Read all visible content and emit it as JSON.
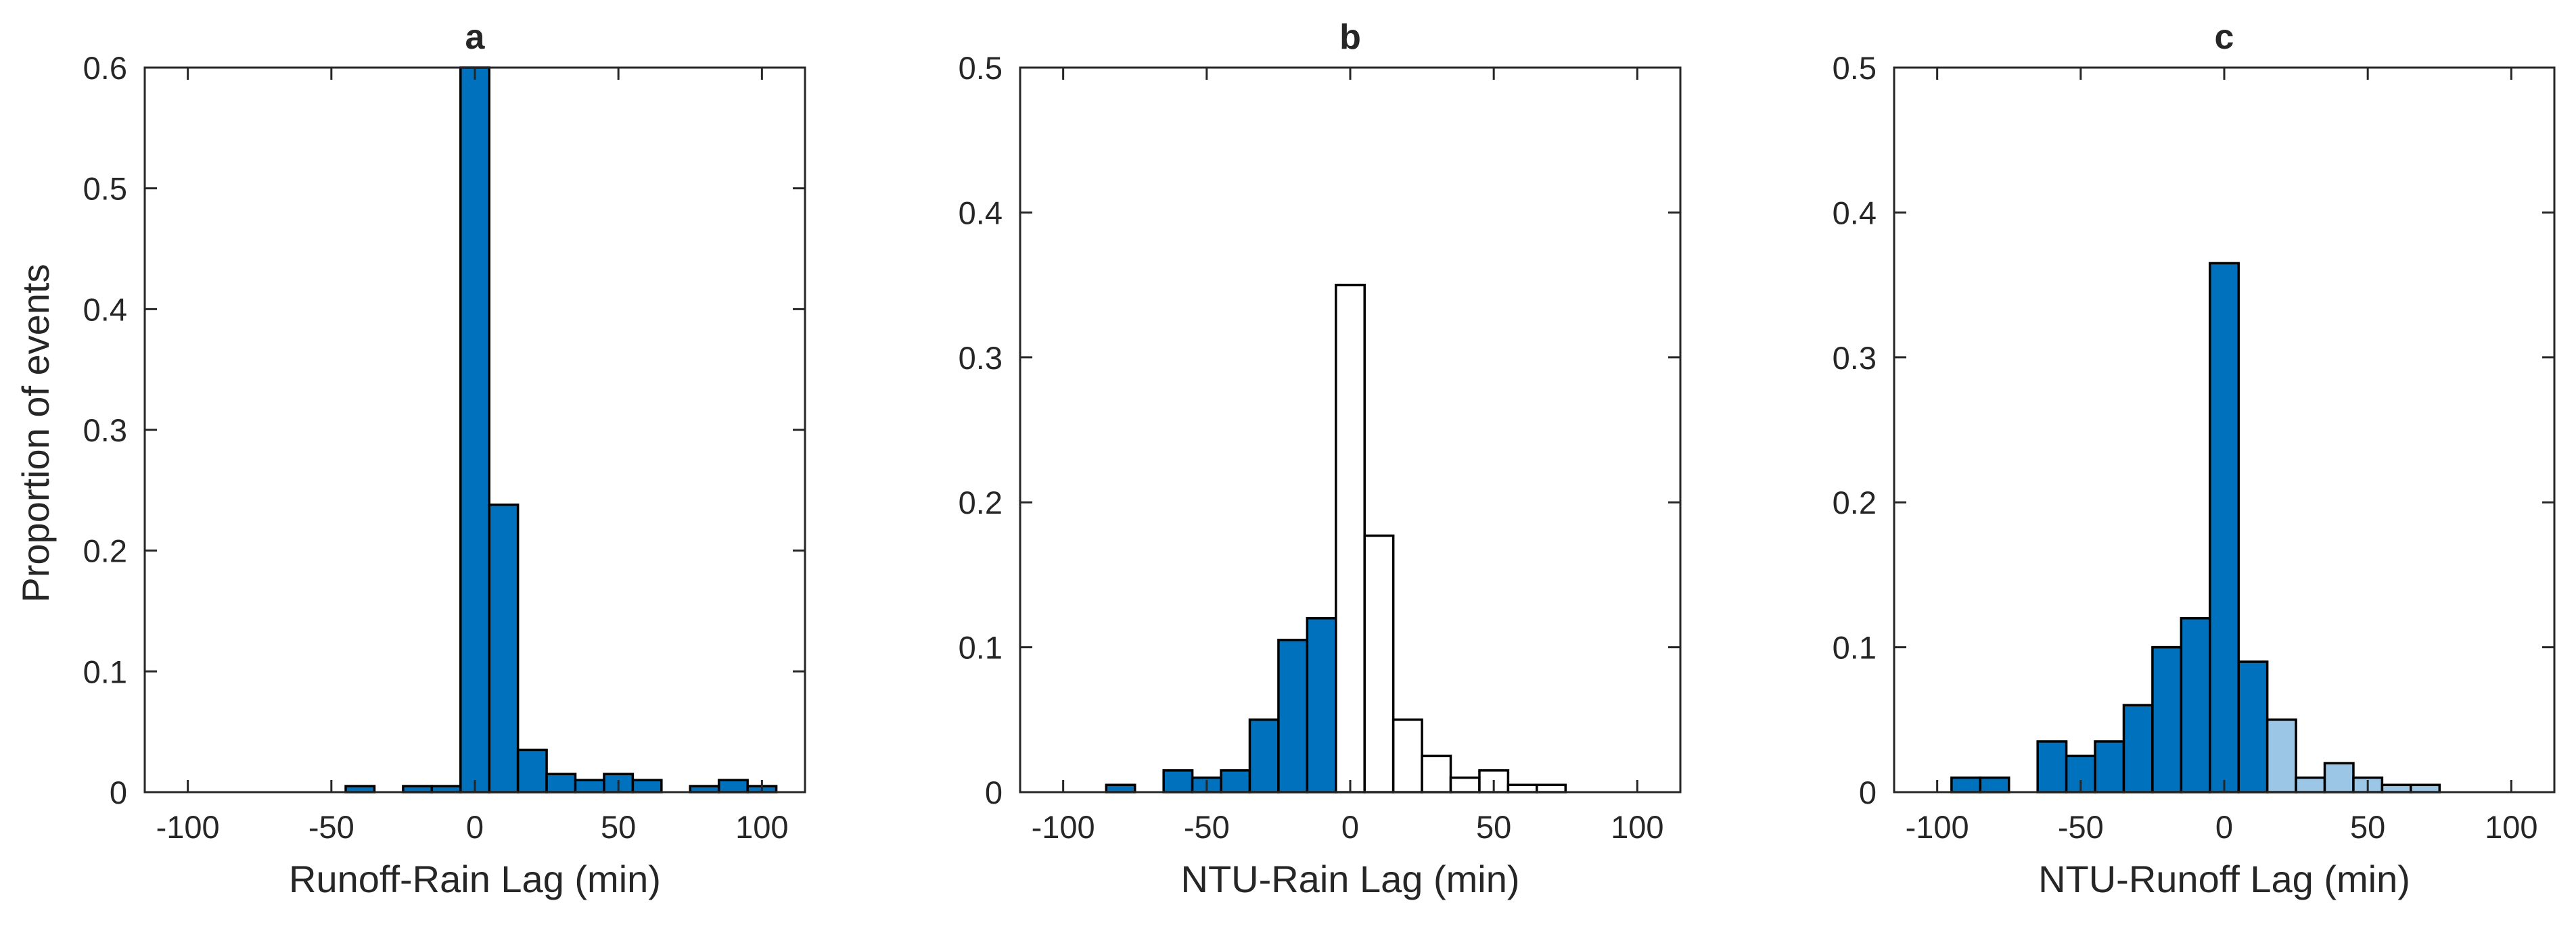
{
  "colors": {
    "dark_blue": "#0072BD",
    "light_blue": "#9CC6E6",
    "white": "#FFFFFF",
    "edge": "#000000",
    "axis": "#262626"
  },
  "chart_data": [
    {
      "type": "bar",
      "panel": "a",
      "title": "a",
      "xlabel": "Runoff-Rain Lag (min)",
      "ylabel": "Proportion of events",
      "xlim": [
        -115,
        115
      ],
      "ylim": [
        0,
        0.6
      ],
      "xticks": [
        -100,
        -50,
        0,
        50,
        100
      ],
      "yticks": [
        0,
        0.1,
        0.2,
        0.3,
        0.4,
        0.5,
        0.6
      ],
      "xtick_labels": [
        "-100",
        "-50",
        "0",
        "50",
        "100"
      ],
      "ytick_labels": [
        "0",
        "0.1",
        "0.2",
        "0.3",
        "0.4",
        "0.5",
        "0.6"
      ],
      "bin_width": 10,
      "bars": [
        {
          "x": -40,
          "value": 0.005,
          "color": "dark_blue"
        },
        {
          "x": -20,
          "value": 0.005,
          "color": "dark_blue"
        },
        {
          "x": -10,
          "value": 0.005,
          "color": "dark_blue"
        },
        {
          "x": 0,
          "value": 0.6,
          "color": "dark_blue"
        },
        {
          "x": 10,
          "value": 0.238,
          "color": "dark_blue"
        },
        {
          "x": 20,
          "value": 0.035,
          "color": "dark_blue"
        },
        {
          "x": 30,
          "value": 0.015,
          "color": "dark_blue"
        },
        {
          "x": 40,
          "value": 0.01,
          "color": "dark_blue"
        },
        {
          "x": 50,
          "value": 0.015,
          "color": "dark_blue"
        },
        {
          "x": 60,
          "value": 0.01,
          "color": "dark_blue"
        },
        {
          "x": 80,
          "value": 0.005,
          "color": "dark_blue"
        },
        {
          "x": 90,
          "value": 0.01,
          "color": "dark_blue"
        },
        {
          "x": 100,
          "value": 0.005,
          "color": "dark_blue"
        }
      ]
    },
    {
      "type": "bar",
      "panel": "b",
      "title": "b",
      "xlabel": "NTU-Rain Lag (min)",
      "ylabel": "",
      "xlim": [
        -115,
        115
      ],
      "ylim": [
        0,
        0.5
      ],
      "xticks": [
        -100,
        -50,
        0,
        50,
        100
      ],
      "yticks": [
        0,
        0.1,
        0.2,
        0.3,
        0.4,
        0.5
      ],
      "xtick_labels": [
        "-100",
        "-50",
        "0",
        "50",
        "100"
      ],
      "ytick_labels": [
        "0",
        "0.1",
        "0.2",
        "0.3",
        "0.4",
        "0.5"
      ],
      "bin_width": 10,
      "bars": [
        {
          "x": -80,
          "value": 0.005,
          "color": "dark_blue"
        },
        {
          "x": -60,
          "value": 0.015,
          "color": "dark_blue"
        },
        {
          "x": -50,
          "value": 0.01,
          "color": "dark_blue"
        },
        {
          "x": -40,
          "value": 0.015,
          "color": "dark_blue"
        },
        {
          "x": -30,
          "value": 0.05,
          "color": "dark_blue"
        },
        {
          "x": -20,
          "value": 0.105,
          "color": "dark_blue"
        },
        {
          "x": -10,
          "value": 0.12,
          "color": "dark_blue"
        },
        {
          "x": 0,
          "value": 0.35,
          "color": "white"
        },
        {
          "x": 10,
          "value": 0.177,
          "color": "white"
        },
        {
          "x": 20,
          "value": 0.05,
          "color": "white"
        },
        {
          "x": 30,
          "value": 0.025,
          "color": "white"
        },
        {
          "x": 40,
          "value": 0.01,
          "color": "white"
        },
        {
          "x": 50,
          "value": 0.015,
          "color": "white"
        },
        {
          "x": 60,
          "value": 0.005,
          "color": "white"
        },
        {
          "x": 70,
          "value": 0.005,
          "color": "white"
        }
      ]
    },
    {
      "type": "bar",
      "panel": "c",
      "title": "c",
      "xlabel": "NTU-Runoff Lag (min)",
      "ylabel": "",
      "xlim": [
        -115,
        115
      ],
      "ylim": [
        0,
        0.5
      ],
      "xticks": [
        -100,
        -50,
        0,
        50,
        100
      ],
      "yticks": [
        0,
        0.1,
        0.2,
        0.3,
        0.4,
        0.5
      ],
      "xtick_labels": [
        "-100",
        "-50",
        "0",
        "50",
        "100"
      ],
      "ytick_labels": [
        "0",
        "0.1",
        "0.2",
        "0.3",
        "0.4",
        "0.5"
      ],
      "bin_width": 10,
      "bars": [
        {
          "x": -90,
          "value": 0.01,
          "color": "dark_blue"
        },
        {
          "x": -80,
          "value": 0.01,
          "color": "dark_blue"
        },
        {
          "x": -60,
          "value": 0.035,
          "color": "dark_blue"
        },
        {
          "x": -50,
          "value": 0.025,
          "color": "dark_blue"
        },
        {
          "x": -40,
          "value": 0.035,
          "color": "dark_blue"
        },
        {
          "x": -30,
          "value": 0.06,
          "color": "dark_blue"
        },
        {
          "x": -20,
          "value": 0.1,
          "color": "dark_blue"
        },
        {
          "x": -10,
          "value": 0.12,
          "color": "dark_blue"
        },
        {
          "x": 0,
          "value": 0.365,
          "color": "dark_blue"
        },
        {
          "x": 10,
          "value": 0.09,
          "color": "dark_blue"
        },
        {
          "x": 20,
          "value": 0.05,
          "color": "light_blue"
        },
        {
          "x": 30,
          "value": 0.01,
          "color": "light_blue"
        },
        {
          "x": 40,
          "value": 0.02,
          "color": "light_blue"
        },
        {
          "x": 50,
          "value": 0.01,
          "color": "light_blue"
        },
        {
          "x": 60,
          "value": 0.005,
          "color": "light_blue"
        },
        {
          "x": 70,
          "value": 0.005,
          "color": "light_blue"
        }
      ]
    }
  ]
}
